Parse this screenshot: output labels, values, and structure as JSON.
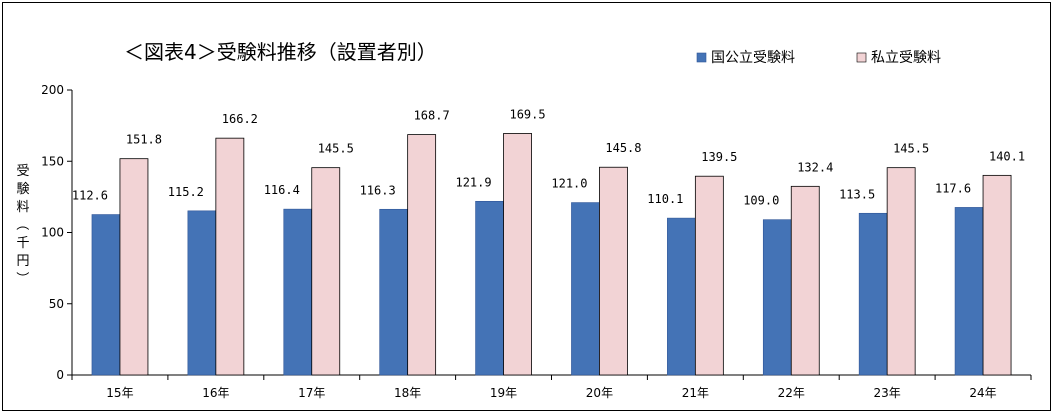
{
  "chart_data": {
    "type": "bar",
    "title": "＜図表4＞受験料推移（設置者別）",
    "ylabel": "受験料（千円）",
    "xlabel": "",
    "ylim": [
      0,
      200
    ],
    "yticks": [
      "0",
      "50",
      "100",
      "150",
      "200"
    ],
    "categories": [
      "15年",
      "16年",
      "17年",
      "18年",
      "19年",
      "20年",
      "21年",
      "22年",
      "23年",
      "24年"
    ],
    "series": [
      {
        "name": "国公立受験料",
        "color": "#4473b6",
        "values": [
          112.6,
          115.2,
          116.4,
          116.3,
          121.9,
          121.0,
          110.1,
          109.0,
          113.5,
          117.6
        ],
        "labels": [
          "112.6",
          "115.2",
          "116.4",
          "116.3",
          "121.9",
          "121.0",
          "110.1",
          "109.0",
          "113.5",
          "117.6"
        ]
      },
      {
        "name": "私立受験料",
        "color": "#f2d3d5",
        "values": [
          151.8,
          166.2,
          145.5,
          168.7,
          169.5,
          145.8,
          139.5,
          132.4,
          145.5,
          140.1
        ],
        "labels": [
          "151.8",
          "166.2",
          "145.5",
          "168.7",
          "169.5",
          "145.8",
          "139.5",
          "132.4",
          "145.5",
          "140.1"
        ]
      }
    ],
    "legend_position": "top-right",
    "grid": false
  }
}
